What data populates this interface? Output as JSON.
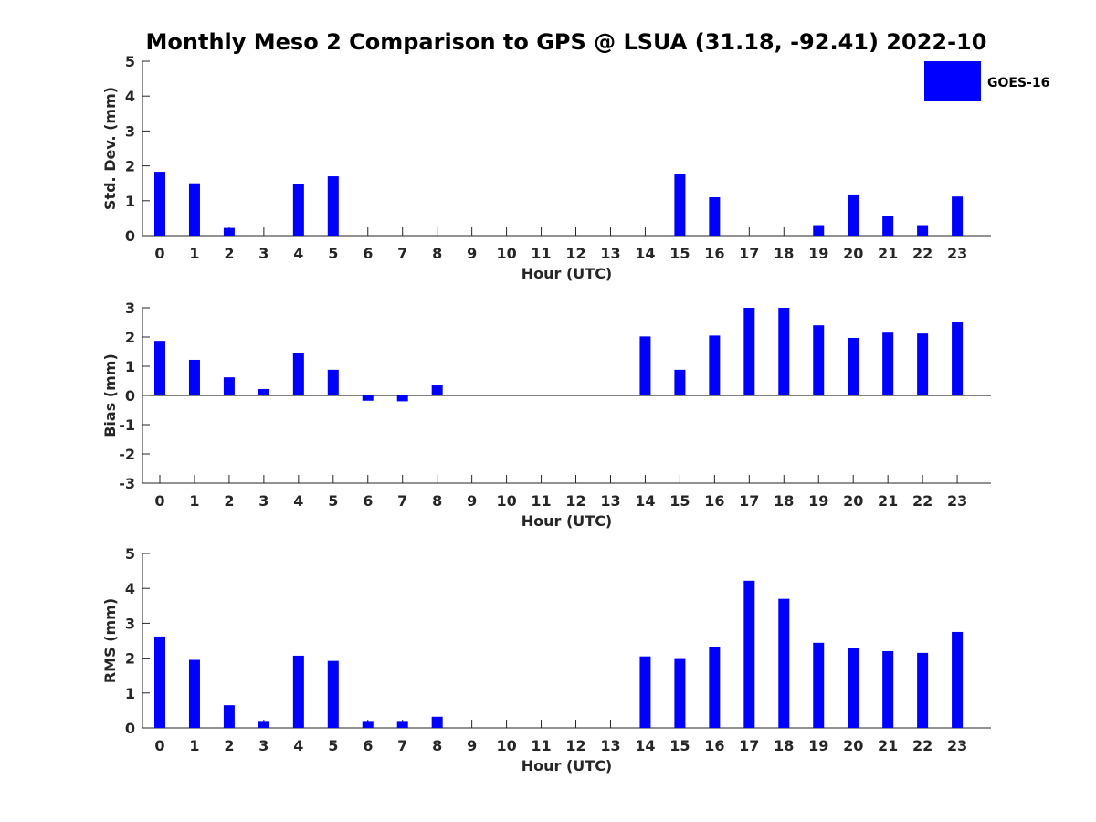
{
  "title": "Monthly Meso 2 Comparison to GPS @ LSUA (31.18, -92.41) 2022-10",
  "legend": {
    "label": "GOES-16",
    "color": "#0000ff",
    "placement": "top-right"
  },
  "chart_data": [
    {
      "type": "bar",
      "name": "std",
      "ylabel": "Std. Dev. (mm)",
      "xlabel": "Hour (UTC)",
      "ylim": [
        0,
        5
      ],
      "yticks": [
        0,
        1,
        2,
        3,
        4,
        5
      ],
      "categories": [
        "0",
        "1",
        "2",
        "3",
        "4",
        "5",
        "6",
        "7",
        "8",
        "9",
        "10",
        "11",
        "12",
        "13",
        "14",
        "15",
        "16",
        "17",
        "18",
        "19",
        "20",
        "21",
        "22",
        "23"
      ],
      "series": [
        {
          "values": [
            1.83,
            1.5,
            0.22,
            null,
            1.48,
            1.7,
            null,
            null,
            null,
            null,
            null,
            null,
            null,
            null,
            null,
            1.77,
            1.1,
            null,
            null,
            0.3,
            1.18,
            0.55,
            0.3,
            1.12
          ]
        }
      ],
      "grid": false
    },
    {
      "type": "bar",
      "name": "bias",
      "ylabel": "Bias (mm)",
      "xlabel": "Hour (UTC)",
      "ylim": [
        -3,
        3
      ],
      "yticks": [
        -3,
        -2,
        -1,
        0,
        1,
        2,
        3
      ],
      "categories": [
        "0",
        "1",
        "2",
        "3",
        "4",
        "5",
        "6",
        "7",
        "8",
        "9",
        "10",
        "11",
        "12",
        "13",
        "14",
        "15",
        "16",
        "17",
        "18",
        "19",
        "20",
        "21",
        "22",
        "23"
      ],
      "series": [
        {
          "values": [
            1.87,
            1.22,
            0.62,
            0.22,
            1.45,
            0.88,
            -0.18,
            -0.2,
            0.35,
            null,
            null,
            null,
            null,
            null,
            2.02,
            0.88,
            2.05,
            3.0,
            3.0,
            2.4,
            1.97,
            2.15,
            2.12,
            2.5
          ]
        }
      ],
      "grid": false
    },
    {
      "type": "bar",
      "name": "rms",
      "ylabel": "RMS (mm)",
      "xlabel": "Hour (UTC)",
      "ylim": [
        0,
        5
      ],
      "yticks": [
        0,
        1,
        2,
        3,
        4,
        5
      ],
      "categories": [
        "0",
        "1",
        "2",
        "3",
        "4",
        "5",
        "6",
        "7",
        "8",
        "9",
        "10",
        "11",
        "12",
        "13",
        "14",
        "15",
        "16",
        "17",
        "18",
        "19",
        "20",
        "21",
        "22",
        "23"
      ],
      "series": [
        {
          "values": [
            2.62,
            1.95,
            0.65,
            0.2,
            2.07,
            1.92,
            0.2,
            0.2,
            0.32,
            null,
            null,
            null,
            null,
            null,
            2.05,
            2.0,
            2.33,
            4.22,
            3.7,
            2.44,
            2.3,
            2.2,
            2.15,
            2.75
          ]
        }
      ],
      "grid": false
    }
  ]
}
